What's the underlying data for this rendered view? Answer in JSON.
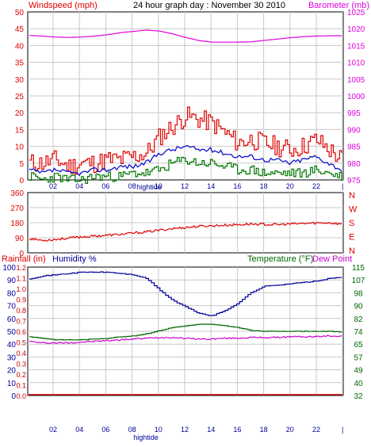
{
  "header": {
    "left_label": "Windspeed (mph)",
    "center_title": "24 hour graph day : November 30 2010",
    "right_label": "Barometer (mb)"
  },
  "colors": {
    "wind_max": "#e00000",
    "wind_avg": "#0000cc",
    "wind_min": "#007700",
    "barometer": "#dd00dd",
    "direction": "#dd0000",
    "humidity": "#000099",
    "temperature": "#006600",
    "dewpoint": "#cc00cc",
    "rainfall": "#cc0000",
    "grid": "#c8c8c8",
    "frame": "#000000"
  },
  "chart_data": [
    {
      "type": "line",
      "name": "wind-barometer",
      "x_tick_labels": [
        "02",
        "04",
        "06",
        "08",
        "10",
        "12",
        "14",
        "16",
        "18",
        "20",
        "22",
        "|"
      ],
      "x_marker_label": "hightide",
      "y_left": {
        "label": "Windspeed (mph)",
        "ticks": [
          0,
          5,
          10,
          15,
          20,
          25,
          30,
          35,
          40,
          45,
          50
        ],
        "ylim": [
          0,
          50
        ]
      },
      "y_right": {
        "label": "Barometer (mb)",
        "ticks": [
          975,
          980,
          985,
          990,
          995,
          1000,
          1005,
          1010,
          1015,
          1020,
          1025
        ],
        "ylim": [
          975,
          1025
        ]
      },
      "x": [
        0,
        1,
        2,
        3,
        4,
        5,
        6,
        7,
        8,
        9,
        10,
        11,
        12,
        13,
        14,
        15,
        16,
        17,
        18,
        19,
        20,
        21,
        22,
        23,
        24
      ],
      "series": [
        {
          "key": "wind_max",
          "values": [
            5,
            5,
            6,
            4,
            5,
            5,
            6,
            6,
            7,
            8,
            13,
            16,
            19,
            18,
            17,
            14,
            11,
            12,
            11,
            10,
            9,
            10,
            12,
            9,
            6
          ]
        },
        {
          "key": "wind_avg",
          "values": [
            3,
            2,
            3,
            2,
            2,
            3,
            3,
            4,
            4,
            5,
            8,
            9,
            10,
            9,
            9,
            8,
            7,
            7,
            6,
            6,
            5,
            6,
            7,
            5,
            3
          ]
        },
        {
          "key": "wind_min",
          "values": [
            1,
            0,
            1,
            0,
            0,
            1,
            1,
            1,
            2,
            2,
            3,
            5,
            6,
            5,
            5,
            4,
            3,
            3,
            2,
            2,
            2,
            2,
            3,
            2,
            1
          ]
        },
        {
          "key": "barometer",
          "values": [
            1018,
            1017.8,
            1017.5,
            1017.4,
            1017.5,
            1017.8,
            1018.2,
            1018.8,
            1019.2,
            1019.6,
            1019.3,
            1018.5,
            1017.4,
            1016.5,
            1016,
            1016,
            1016,
            1016.1,
            1016.5,
            1016.9,
            1017.3,
            1017.6,
            1017.8,
            1017.9,
            1017.9
          ]
        }
      ]
    },
    {
      "type": "scatter",
      "name": "wind-direction",
      "y_left_ticks": [
        0,
        90,
        180,
        270,
        360
      ],
      "y_right_labels": [
        "N",
        "W",
        "S",
        "E",
        "N"
      ],
      "ylim": [
        0,
        360
      ],
      "x": [
        0,
        1,
        2,
        3,
        4,
        5,
        6,
        7,
        8,
        9,
        10,
        11,
        12,
        13,
        14,
        15,
        16,
        17,
        18,
        19,
        20,
        21,
        22,
        23,
        24
      ],
      "series": [
        {
          "key": "direction",
          "values": [
            85,
            75,
            80,
            88,
            95,
            100,
            105,
            110,
            118,
            125,
            135,
            145,
            152,
            158,
            162,
            165,
            168,
            172,
            170,
            168,
            172,
            175,
            178,
            180,
            172
          ]
        }
      ]
    },
    {
      "type": "line",
      "name": "rain-humidity-temperature",
      "top_labels": {
        "rainfall": "Rainfall (in)",
        "humidity": "Humidity %",
        "temperature": "Temperature (°F)",
        "dewpoint": "Dew Point"
      },
      "x_tick_labels": [
        "02",
        "04",
        "06",
        "08",
        "10",
        "12",
        "14",
        "16",
        "18",
        "20",
        "22",
        "|"
      ],
      "x_marker_label": "hightide",
      "y_rain_ticks": [
        "0.0",
        "0.1",
        "0.2",
        "0.3",
        "0.4",
        "0.5",
        "0.6",
        "0.7",
        "0.8",
        "0.9",
        "1.0",
        "1.1",
        "1.2"
      ],
      "y_humidity_ticks": [
        0,
        10,
        20,
        30,
        40,
        50,
        60,
        70,
        80,
        90,
        100
      ],
      "y_temperature_ticks": [
        32,
        40,
        49,
        57,
        65,
        74,
        82,
        90,
        98,
        107,
        115
      ],
      "humidity_ylim": [
        0,
        100
      ],
      "temperature_ylim": [
        32,
        115
      ],
      "x": [
        0,
        1,
        2,
        3,
        4,
        5,
        6,
        7,
        8,
        9,
        10,
        11,
        12,
        13,
        14,
        15,
        16,
        17,
        18,
        19,
        20,
        21,
        22,
        23,
        24
      ],
      "series": [
        {
          "key": "humidity",
          "values": [
            91,
            93,
            94,
            95,
            96,
            96,
            96,
            95,
            94,
            91,
            82,
            74,
            69,
            64,
            62,
            66,
            72,
            80,
            85,
            86,
            87,
            88,
            89,
            91,
            92
          ]
        },
        {
          "key": "temperature",
          "values": [
            70,
            69,
            68,
            68,
            68,
            68.5,
            69,
            70,
            70.5,
            72,
            74,
            76,
            77,
            78,
            78,
            77,
            76,
            74,
            73.5,
            73.5,
            73.5,
            73.5,
            73.5,
            73.5,
            73
          ]
        },
        {
          "key": "dewpoint",
          "values": [
            67,
            66,
            66,
            66,
            66.5,
            67,
            67.5,
            68,
            68.5,
            69,
            69.5,
            69.5,
            69,
            68.5,
            68.5,
            69,
            69,
            69.5,
            69.5,
            69.5,
            70,
            70,
            70,
            70.5,
            70.5
          ]
        },
        {
          "key": "rainfall",
          "values": [
            0,
            0,
            0,
            0,
            0,
            0,
            0,
            0,
            0,
            0,
            0,
            0,
            0,
            0,
            0,
            0,
            0,
            0,
            0,
            0,
            0,
            0,
            0,
            0,
            0
          ]
        }
      ]
    }
  ]
}
